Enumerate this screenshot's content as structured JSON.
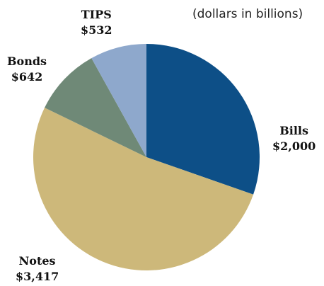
{
  "chart_data": {
    "type": "pie",
    "subtitle": "(dollars in billions)",
    "slices": [
      {
        "label": "Bills",
        "value_label": "$2,000",
        "value": 2000,
        "color": "#0d4f87"
      },
      {
        "label": "Notes",
        "value_label": "$3,417",
        "value": 3417,
        "color": "#cdb87a"
      },
      {
        "label": "Bonds",
        "value_label": "$642",
        "value": 642,
        "color": "#6f8977"
      },
      {
        "label": "TIPS",
        "value_label": "$532",
        "value": 532,
        "color": "#8ea8cc"
      }
    ]
  }
}
